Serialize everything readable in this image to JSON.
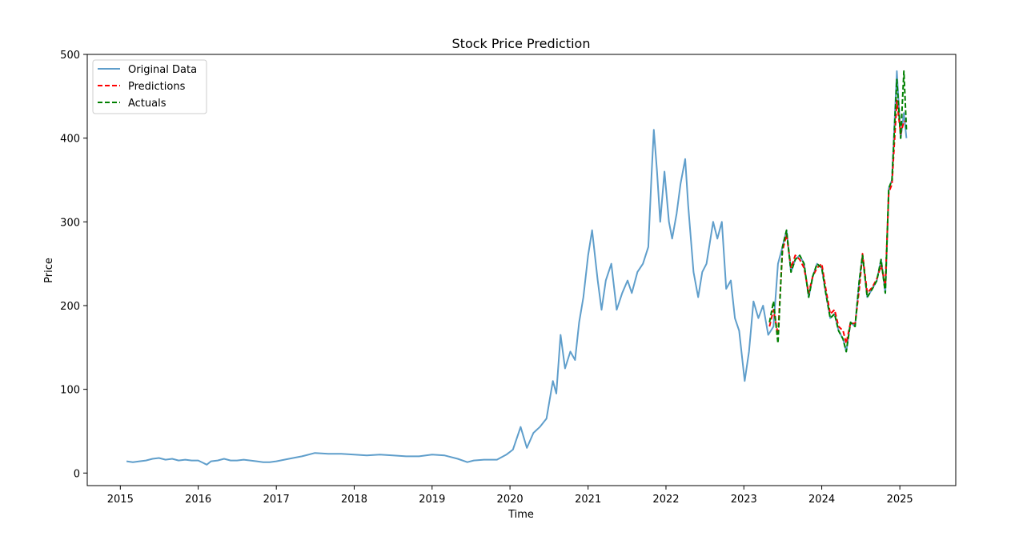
{
  "chart_data": {
    "type": "line",
    "title": "Stock Price Prediction",
    "xlabel": "Time",
    "ylabel": "Price",
    "xlim": [
      "2014-07-30",
      "2025-09-20"
    ],
    "ylim": [
      -15,
      500
    ],
    "x_ticks": [
      "2015",
      "2016",
      "2017",
      "2018",
      "2019",
      "2020",
      "2021",
      "2022",
      "2023",
      "2024",
      "2025"
    ],
    "y_ticks": [
      0,
      100,
      200,
      300,
      400,
      500
    ],
    "grid": false,
    "legend": {
      "position": "top-left",
      "entries": [
        "Original Data",
        "Predictions",
        "Actuals"
      ]
    },
    "series": [
      {
        "name": "Original Data",
        "color": "#5f9ecb",
        "style": "solid",
        "points": [
          [
            "2015-01-30",
            14
          ],
          [
            "2015-03-01",
            13
          ],
          [
            "2015-04-01",
            14
          ],
          [
            "2015-05-01",
            15
          ],
          [
            "2015-06-01",
            17
          ],
          [
            "2015-07-01",
            18
          ],
          [
            "2015-08-01",
            16
          ],
          [
            "2015-09-01",
            17
          ],
          [
            "2015-10-01",
            15
          ],
          [
            "2015-11-01",
            16
          ],
          [
            "2015-12-01",
            15
          ],
          [
            "2016-01-01",
            15
          ],
          [
            "2016-02-10",
            10
          ],
          [
            "2016-03-01",
            14
          ],
          [
            "2016-04-01",
            15
          ],
          [
            "2016-05-01",
            17
          ],
          [
            "2016-06-01",
            15
          ],
          [
            "2016-07-01",
            15
          ],
          [
            "2016-08-01",
            16
          ],
          [
            "2016-09-01",
            15
          ],
          [
            "2016-10-01",
            14
          ],
          [
            "2016-11-01",
            13
          ],
          [
            "2016-12-01",
            13
          ],
          [
            "2017-01-01",
            14
          ],
          [
            "2017-03-01",
            17
          ],
          [
            "2017-05-01",
            20
          ],
          [
            "2017-07-01",
            24
          ],
          [
            "2017-09-01",
            23
          ],
          [
            "2017-11-01",
            23
          ],
          [
            "2018-01-01",
            22
          ],
          [
            "2018-03-01",
            21
          ],
          [
            "2018-05-01",
            22
          ],
          [
            "2018-07-01",
            21
          ],
          [
            "2018-09-01",
            20
          ],
          [
            "2018-11-01",
            20
          ],
          [
            "2019-01-01",
            22
          ],
          [
            "2019-03-01",
            21
          ],
          [
            "2019-05-01",
            17
          ],
          [
            "2019-06-15",
            13
          ],
          [
            "2019-07-15",
            15
          ],
          [
            "2019-09-01",
            16
          ],
          [
            "2019-11-01",
            16
          ],
          [
            "2019-12-15",
            22
          ],
          [
            "2020-01-15",
            28
          ],
          [
            "2020-02-20",
            55
          ],
          [
            "2020-03-20",
            30
          ],
          [
            "2020-04-20",
            48
          ],
          [
            "2020-05-20",
            55
          ],
          [
            "2020-06-20",
            65
          ],
          [
            "2020-07-10",
            95
          ],
          [
            "2020-07-20",
            110
          ],
          [
            "2020-08-05",
            95
          ],
          [
            "2020-08-25",
            165
          ],
          [
            "2020-09-15",
            125
          ],
          [
            "2020-10-10",
            145
          ],
          [
            "2020-11-01",
            135
          ],
          [
            "2020-11-20",
            180
          ],
          [
            "2020-12-10",
            210
          ],
          [
            "2021-01-01",
            260
          ],
          [
            "2021-01-20",
            290
          ],
          [
            "2021-02-15",
            230
          ],
          [
            "2021-03-05",
            195
          ],
          [
            "2021-03-25",
            230
          ],
          [
            "2021-04-20",
            250
          ],
          [
            "2021-05-15",
            195
          ],
          [
            "2021-06-10",
            215
          ],
          [
            "2021-07-05",
            230
          ],
          [
            "2021-07-25",
            215
          ],
          [
            "2021-08-20",
            240
          ],
          [
            "2021-09-15",
            250
          ],
          [
            "2021-10-10",
            270
          ],
          [
            "2021-10-25",
            355
          ],
          [
            "2021-11-05",
            410
          ],
          [
            "2021-11-20",
            360
          ],
          [
            "2021-12-05",
            300
          ],
          [
            "2021-12-25",
            360
          ],
          [
            "2022-01-15",
            300
          ],
          [
            "2022-01-30",
            280
          ],
          [
            "2022-02-20",
            310
          ],
          [
            "2022-03-10",
            345
          ],
          [
            "2022-04-01",
            375
          ],
          [
            "2022-04-15",
            320
          ],
          [
            "2022-05-10",
            240
          ],
          [
            "2022-06-01",
            210
          ],
          [
            "2022-06-20",
            240
          ],
          [
            "2022-07-10",
            250
          ],
          [
            "2022-08-10",
            300
          ],
          [
            "2022-08-30",
            280
          ],
          [
            "2022-09-20",
            300
          ],
          [
            "2022-10-10",
            220
          ],
          [
            "2022-11-01",
            230
          ],
          [
            "2022-11-20",
            185
          ],
          [
            "2022-12-10",
            170
          ],
          [
            "2023-01-05",
            110
          ],
          [
            "2023-01-25",
            145
          ],
          [
            "2023-02-15",
            205
          ],
          [
            "2023-03-10",
            185
          ],
          [
            "2023-04-01",
            200
          ],
          [
            "2023-04-25",
            165
          ],
          [
            "2023-05-20",
            175
          ],
          [
            "2023-06-10",
            250
          ],
          [
            "2023-07-01",
            270
          ],
          [
            "2023-07-20",
            290
          ],
          [
            "2023-08-10",
            240
          ],
          [
            "2023-08-30",
            255
          ],
          [
            "2023-09-20",
            260
          ],
          [
            "2023-10-10",
            250
          ],
          [
            "2023-11-01",
            210
          ],
          [
            "2023-11-20",
            235
          ],
          [
            "2023-12-10",
            250
          ],
          [
            "2024-01-01",
            245
          ],
          [
            "2024-01-20",
            215
          ],
          [
            "2024-02-10",
            185
          ],
          [
            "2024-03-01",
            190
          ],
          [
            "2024-03-20",
            170
          ],
          [
            "2024-04-10",
            160
          ],
          [
            "2024-04-25",
            145
          ],
          [
            "2024-05-15",
            180
          ],
          [
            "2024-06-05",
            175
          ],
          [
            "2024-06-25",
            230
          ],
          [
            "2024-07-10",
            260
          ],
          [
            "2024-08-01",
            210
          ],
          [
            "2024-08-25",
            220
          ],
          [
            "2024-09-15",
            230
          ],
          [
            "2024-10-05",
            255
          ],
          [
            "2024-10-25",
            215
          ],
          [
            "2024-11-10",
            340
          ],
          [
            "2024-11-25",
            350
          ],
          [
            "2024-12-18",
            480
          ],
          [
            "2025-01-05",
            400
          ],
          [
            "2025-01-20",
            430
          ],
          [
            "2025-02-01",
            400
          ]
        ]
      },
      {
        "name": "Predictions",
        "color": "#ff0000",
        "style": "dashed",
        "points": [
          [
            "2023-05-01",
            175
          ],
          [
            "2023-05-20",
            195
          ],
          [
            "2023-06-10",
            165
          ],
          [
            "2023-07-01",
            265
          ],
          [
            "2023-07-20",
            285
          ],
          [
            "2023-08-10",
            245
          ],
          [
            "2023-08-30",
            260
          ],
          [
            "2023-09-20",
            255
          ],
          [
            "2023-10-10",
            245
          ],
          [
            "2023-11-01",
            215
          ],
          [
            "2023-11-20",
            235
          ],
          [
            "2023-12-10",
            245
          ],
          [
            "2024-01-01",
            250
          ],
          [
            "2024-01-20",
            220
          ],
          [
            "2024-02-10",
            190
          ],
          [
            "2024-03-01",
            195
          ],
          [
            "2024-03-20",
            175
          ],
          [
            "2024-04-10",
            170
          ],
          [
            "2024-04-25",
            155
          ],
          [
            "2024-05-15",
            180
          ],
          [
            "2024-06-05",
            178
          ],
          [
            "2024-06-25",
            220
          ],
          [
            "2024-07-10",
            262
          ],
          [
            "2024-08-01",
            215
          ],
          [
            "2024-08-25",
            222
          ],
          [
            "2024-09-15",
            232
          ],
          [
            "2024-10-05",
            248
          ],
          [
            "2024-10-25",
            225
          ],
          [
            "2024-11-10",
            335
          ],
          [
            "2024-11-25",
            345
          ],
          [
            "2024-12-18",
            445
          ],
          [
            "2025-01-05",
            405
          ],
          [
            "2025-01-20",
            420
          ],
          [
            "2025-02-01",
            420
          ]
        ]
      },
      {
        "name": "Actuals",
        "color": "#008000",
        "style": "dashed",
        "points": [
          [
            "2023-05-01",
            180
          ],
          [
            "2023-05-20",
            205
          ],
          [
            "2023-06-10",
            155
          ],
          [
            "2023-07-01",
            270
          ],
          [
            "2023-07-20",
            290
          ],
          [
            "2023-08-10",
            240
          ],
          [
            "2023-08-30",
            255
          ],
          [
            "2023-09-20",
            260
          ],
          [
            "2023-10-10",
            250
          ],
          [
            "2023-11-01",
            210
          ],
          [
            "2023-11-20",
            235
          ],
          [
            "2023-12-10",
            250
          ],
          [
            "2024-01-01",
            245
          ],
          [
            "2024-01-20",
            215
          ],
          [
            "2024-02-10",
            185
          ],
          [
            "2024-03-01",
            190
          ],
          [
            "2024-03-20",
            170
          ],
          [
            "2024-04-10",
            160
          ],
          [
            "2024-04-25",
            145
          ],
          [
            "2024-05-15",
            180
          ],
          [
            "2024-06-05",
            175
          ],
          [
            "2024-06-25",
            230
          ],
          [
            "2024-07-10",
            260
          ],
          [
            "2024-08-01",
            210
          ],
          [
            "2024-08-25",
            220
          ],
          [
            "2024-09-15",
            230
          ],
          [
            "2024-10-05",
            255
          ],
          [
            "2024-10-25",
            215
          ],
          [
            "2024-11-10",
            340
          ],
          [
            "2024-11-25",
            350
          ],
          [
            "2024-12-18",
            470
          ],
          [
            "2025-01-05",
            400
          ],
          [
            "2025-01-20",
            480
          ],
          [
            "2025-02-01",
            410
          ]
        ]
      }
    ]
  }
}
